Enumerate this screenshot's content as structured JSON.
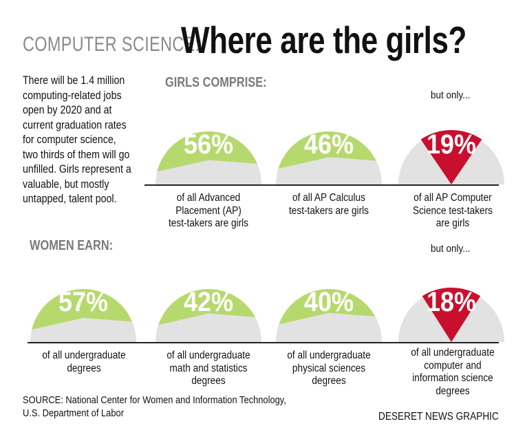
{
  "header": {
    "kicker": "COMPUTER SCIENCE:",
    "headline": "Where are the girls?"
  },
  "intro_lines": [
    "There will be 1.4 million",
    "computing-related jobs",
    "open by 2020 and at",
    "current graduation rates",
    "for computer science,",
    "two thirds of them will go",
    "unfilled. Girls represent a",
    "valuable, but mostly",
    "untapped, talent pool."
  ],
  "sections": {
    "girls_label": "GIRLS COMPRISE:",
    "women_label": "WOMEN EARN:"
  },
  "colors": {
    "green": "#b6d96e",
    "red": "#c8102e",
    "gray": "#e2e2e2",
    "label_gray": "#7a7a7a"
  },
  "chart_data": [
    {
      "type": "pie",
      "group": "GIRLS COMPRISE:",
      "items": [
        {
          "value": 56,
          "label": "56%",
          "style": "green",
          "caption": [
            "of all Advanced",
            "Placement (AP)",
            "test-takers are girls"
          ]
        },
        {
          "value": 46,
          "label": "46%",
          "style": "green",
          "caption": [
            "of all AP Calculus",
            "test-takers are girls"
          ]
        },
        {
          "value": 19,
          "label": "19%",
          "style": "red",
          "note": "but only...",
          "caption": [
            "of all AP Computer",
            "Science test-takers",
            "are girls"
          ]
        }
      ]
    },
    {
      "type": "pie",
      "group": "WOMEN EARN:",
      "items": [
        {
          "value": 57,
          "label": "57%",
          "style": "green",
          "caption": [
            "of all undergraduate",
            "degrees"
          ]
        },
        {
          "value": 42,
          "label": "42%",
          "style": "green",
          "caption": [
            "of all undergraduate",
            "math and statistics",
            "degrees"
          ]
        },
        {
          "value": 40,
          "label": "40%",
          "style": "green",
          "caption": [
            "of all undergraduate",
            "physical sciences",
            "degrees"
          ]
        },
        {
          "value": 18,
          "label": "18%",
          "style": "red",
          "note": "but only...",
          "caption": [
            "of all undergraduate",
            "computer and",
            "information science",
            "degrees"
          ]
        }
      ]
    }
  ],
  "footer": {
    "source_lines": [
      "SOURCE: National Center for Women and Information Technology,",
      "U.S. Department of Labor"
    ],
    "credit": "DESERET NEWS GRAPHIC"
  }
}
